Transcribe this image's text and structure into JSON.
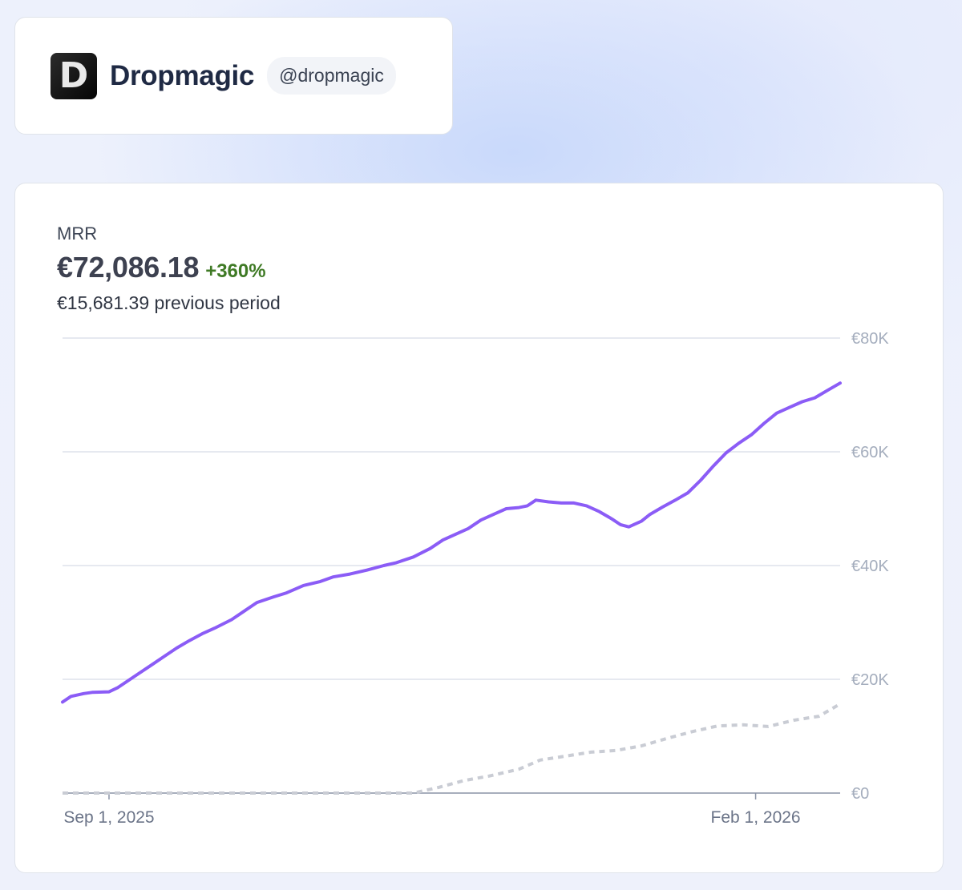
{
  "brand": {
    "logo_letter": "D",
    "name": "Dropmagic",
    "handle": "@dropmagic"
  },
  "metric": {
    "label": "MRR",
    "value": "€72,086.18",
    "change": "+360%",
    "previous": "€15,681.39 previous period"
  },
  "colors": {
    "current_line": "#8b5cf6",
    "previous_line": "#c9ccd4",
    "change_positive": "#3f7a25",
    "gridline": "#dde2ec"
  },
  "chart_data": {
    "type": "line",
    "title": "",
    "xlabel": "",
    "ylabel": "",
    "ylim": [
      0,
      80000
    ],
    "y_axis_position": "right",
    "grid": true,
    "legend": "none",
    "y_ticks": [
      {
        "value": 0,
        "label": "€0"
      },
      {
        "value": 20000,
        "label": "€20K"
      },
      {
        "value": 40000,
        "label": "€40K"
      },
      {
        "value": 60000,
        "label": "€60K"
      },
      {
        "value": 80000,
        "label": "€80K"
      }
    ],
    "x_range": [
      "2025-08-21",
      "2026-02-21"
    ],
    "x_ticks": [
      {
        "date": "2025-09-01",
        "label": "Sep 1, 2025"
      },
      {
        "date": "2026-02-01",
        "label": "Feb 1, 2026"
      }
    ],
    "series": [
      {
        "style": "solid",
        "points": [
          [
            "2025-08-21",
            16000
          ],
          [
            "2025-08-23",
            17000
          ],
          [
            "2025-08-26",
            17500
          ],
          [
            "2025-08-28",
            17700
          ],
          [
            "2025-09-01",
            17800
          ],
          [
            "2025-09-03",
            18500
          ],
          [
            "2025-09-05",
            19500
          ],
          [
            "2025-09-08",
            21000
          ],
          [
            "2025-09-11",
            22500
          ],
          [
            "2025-09-14",
            24000
          ],
          [
            "2025-09-17",
            25500
          ],
          [
            "2025-09-20",
            26800
          ],
          [
            "2025-09-23",
            28000
          ],
          [
            "2025-09-26",
            29000
          ],
          [
            "2025-09-30",
            30500
          ],
          [
            "2025-10-03",
            32000
          ],
          [
            "2025-10-06",
            33500
          ],
          [
            "2025-10-10",
            34500
          ],
          [
            "2025-10-13",
            35200
          ],
          [
            "2025-10-17",
            36500
          ],
          [
            "2025-10-21",
            37200
          ],
          [
            "2025-10-24",
            38000
          ],
          [
            "2025-10-28",
            38500
          ],
          [
            "2025-11-01",
            39200
          ],
          [
            "2025-11-05",
            40000
          ],
          [
            "2025-11-08",
            40500
          ],
          [
            "2025-11-12",
            41500
          ],
          [
            "2025-11-16",
            43000
          ],
          [
            "2025-11-19",
            44500
          ],
          [
            "2025-11-22",
            45500
          ],
          [
            "2025-11-25",
            46500
          ],
          [
            "2025-11-28",
            48000
          ],
          [
            "2025-12-01",
            49000
          ],
          [
            "2025-12-04",
            50000
          ],
          [
            "2025-12-07",
            50200
          ],
          [
            "2025-12-09",
            50500
          ],
          [
            "2025-12-11",
            51500
          ],
          [
            "2025-12-14",
            51200
          ],
          [
            "2025-12-17",
            51000
          ],
          [
            "2025-12-20",
            51000
          ],
          [
            "2025-12-23",
            50500
          ],
          [
            "2025-12-26",
            49500
          ],
          [
            "2025-12-29",
            48200
          ],
          [
            "2025-12-31",
            47200
          ],
          [
            "2026-01-02",
            46800
          ],
          [
            "2026-01-05",
            47800
          ],
          [
            "2026-01-07",
            49000
          ],
          [
            "2026-01-10",
            50300
          ],
          [
            "2026-01-13",
            51500
          ],
          [
            "2026-01-16",
            52800
          ],
          [
            "2026-01-19",
            55000
          ],
          [
            "2026-01-22",
            57500
          ],
          [
            "2026-01-25",
            59800
          ],
          [
            "2026-01-28",
            61500
          ],
          [
            "2026-01-31",
            63000
          ],
          [
            "2026-02-03",
            65000
          ],
          [
            "2026-02-06",
            66800
          ],
          [
            "2026-02-09",
            67800
          ],
          [
            "2026-02-12",
            68800
          ],
          [
            "2026-02-15",
            69500
          ],
          [
            "2026-02-18",
            70800
          ],
          [
            "2026-02-21",
            72086
          ]
        ]
      },
      {
        "style": "dashed",
        "points": [
          [
            "2025-08-21",
            0
          ],
          [
            "2025-10-01",
            0
          ],
          [
            "2025-11-12",
            0
          ],
          [
            "2025-11-18",
            1000
          ],
          [
            "2025-11-24",
            2200
          ],
          [
            "2025-11-30",
            3000
          ],
          [
            "2025-12-07",
            4200
          ],
          [
            "2025-12-12",
            5800
          ],
          [
            "2025-12-18",
            6500
          ],
          [
            "2025-12-24",
            7200
          ],
          [
            "2025-12-30",
            7500
          ],
          [
            "2026-01-05",
            8300
          ],
          [
            "2026-01-11",
            9600
          ],
          [
            "2026-01-17",
            10800
          ],
          [
            "2026-01-23",
            11800
          ],
          [
            "2026-01-29",
            12000
          ],
          [
            "2026-02-04",
            11700
          ],
          [
            "2026-02-10",
            12800
          ],
          [
            "2026-02-16",
            13500
          ],
          [
            "2026-02-21",
            15681
          ]
        ]
      }
    ]
  }
}
